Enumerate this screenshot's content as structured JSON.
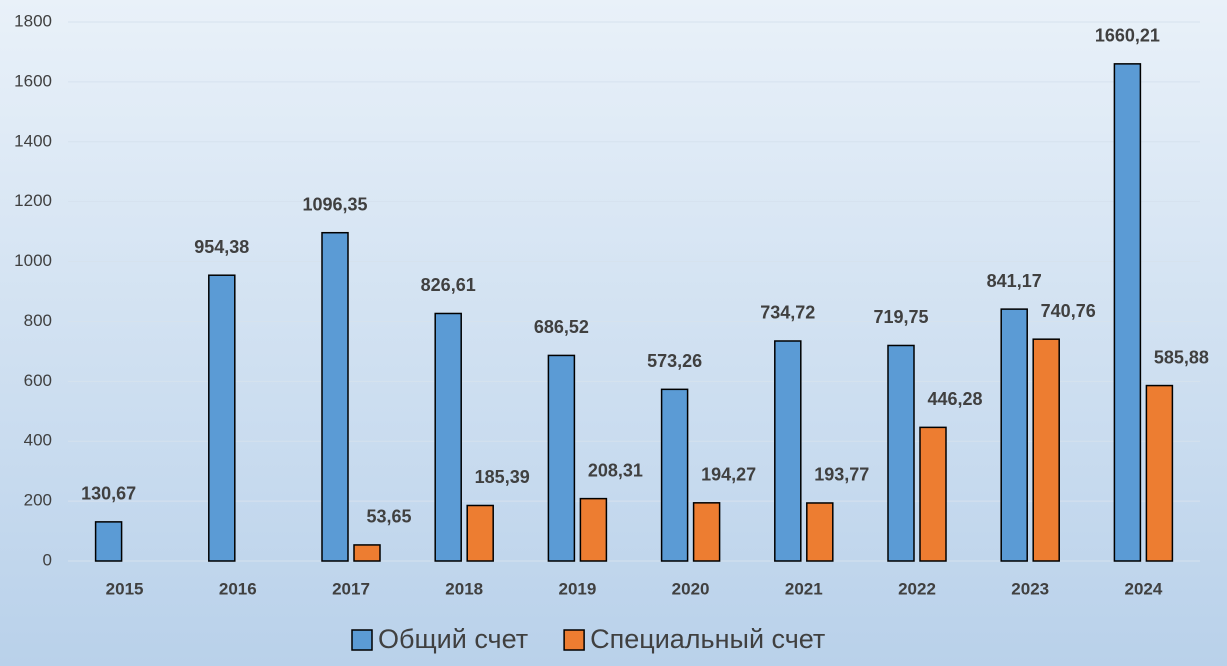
{
  "chart_data": {
    "type": "bar",
    "categories": [
      "2015",
      "2016",
      "2017",
      "2018",
      "2019",
      "2020",
      "2021",
      "2022",
      "2023",
      "2024"
    ],
    "series": [
      {
        "name": "Общий счет",
        "color": "#5b9bd5",
        "values": [
          130.67,
          954.38,
          1096.35,
          826.61,
          686.52,
          573.26,
          734.72,
          719.75,
          841.17,
          1660.21
        ],
        "value_labels": [
          "130,67",
          "954,38",
          "1096,35",
          "826,61",
          "686,52",
          "573,26",
          "734,72",
          "719,75",
          "841,17",
          "1660,21"
        ]
      },
      {
        "name": "Специальный счет",
        "color": "#ed7d31",
        "values": [
          null,
          null,
          53.65,
          185.39,
          208.31,
          194.27,
          193.77,
          446.28,
          740.76,
          585.88
        ],
        "value_labels": [
          null,
          null,
          "53,65",
          "185,39",
          "208,31",
          "194,27",
          "193,77",
          "446,28",
          "740,76",
          "585,88"
        ]
      }
    ],
    "ylim": [
      0,
      1800
    ],
    "yticks": [
      0,
      200,
      400,
      600,
      800,
      1000,
      1200,
      1400,
      1600,
      1800
    ],
    "grid": true,
    "legend": "bottom"
  }
}
